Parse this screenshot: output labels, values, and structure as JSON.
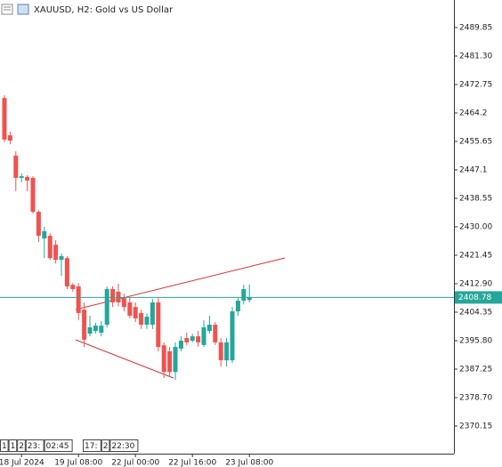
{
  "chart_data": {
    "type": "candlestick",
    "title": "XAUUSD, H2:  Gold vs US Dollar",
    "categories": [
      null,
      null,
      null,
      "18 Jul 2024",
      null,
      null,
      null,
      null,
      null,
      null,
      null,
      null,
      null,
      "19 Jul 08:00",
      null,
      null,
      null,
      null,
      null,
      null,
      null,
      null,
      null,
      "22 Jul 00:00",
      null,
      null,
      null,
      null,
      null,
      null,
      null,
      null,
      null,
      "22 Jul 16:00",
      null,
      null,
      null,
      null,
      null,
      null,
      null,
      null,
      null,
      "23 Jul 08:00"
    ],
    "open": [
      2468.7,
      2457.5,
      2451.4,
      2444.7,
      2445.0,
      2444.7,
      2434.5,
      2426.5,
      2427.3,
      2424.6,
      2420.1,
      2420.6,
      2412.6,
      2412.1,
      2405.1,
      2397.9,
      2398.7,
      2398.2,
      2400.6,
      2411.3,
      2410.5,
      2408.6,
      2407.3,
      2405.9,
      2404.1,
      2400.6,
      2400.6,
      2407.3,
      2394.4,
      2392.6,
      2386.4,
      2393.4,
      2396.6,
      2395.8,
      2397.1,
      2394.5,
      2398.7,
      2400.6,
      2395.3,
      2389.9,
      2389.9,
      2404.6,
      2407.8,
      2408.0
    ],
    "high": [
      2469.5,
      2458.6,
      2452.7,
      2446.0,
      2445.5,
      2445.2,
      2435.0,
      2430.0,
      2428.1,
      2426.0,
      2422.0,
      2421.2,
      2413.1,
      2413.1,
      2407.3,
      2403.3,
      2401.2,
      2401.7,
      2412.1,
      2412.1,
      2412.9,
      2409.9,
      2408.6,
      2407.3,
      2405.1,
      2404.0,
      2408.3,
      2408.6,
      2395.3,
      2393.9,
      2395.3,
      2397.1,
      2398.2,
      2397.9,
      2398.7,
      2401.9,
      2403.3,
      2401.4,
      2396.6,
      2396.6,
      2405.9,
      2408.6,
      2412.6,
      2412.6
    ],
    "low": [
      2455.4,
      2454.8,
      2440.7,
      2443.4,
      2440.7,
      2434.0,
      2425.4,
      2420.6,
      2420.1,
      2419.0,
      2415.3,
      2411.3,
      2410.5,
      2402.0,
      2393.9,
      2397.1,
      2397.9,
      2397.1,
      2399.8,
      2405.9,
      2406.1,
      2404.6,
      2402.5,
      2401.4,
      2399.3,
      2399.3,
      2399.3,
      2392.6,
      2384.6,
      2385.2,
      2384.0,
      2392.6,
      2394.4,
      2395.3,
      2394.0,
      2393.9,
      2397.9,
      2394.5,
      2388.0,
      2388.0,
      2389.1,
      2403.3,
      2406.7,
      2407.3
    ],
    "close": [
      2456.2,
      2455.9,
      2444.7,
      2445.2,
      2443.9,
      2434.5,
      2427.3,
      2428.7,
      2420.6,
      2420.1,
      2421.2,
      2412.1,
      2411.3,
      2404.1,
      2396.1,
      2399.8,
      2400.3,
      2400.3,
      2411.3,
      2407.3,
      2407.3,
      2405.9,
      2403.3,
      2402.5,
      2400.6,
      2403.0,
      2407.3,
      2393.9,
      2386.4,
      2386.4,
      2393.9,
      2395.8,
      2395.3,
      2397.1,
      2395.3,
      2399.8,
      2400.6,
      2395.3,
      2389.9,
      2395.3,
      2404.6,
      2407.8,
      2411.3,
      2408.78
    ],
    "up_color": "#26a69a",
    "down_color": "#ef5350",
    "ylim": [
      2361.86,
      2498.13
    ],
    "yticks": [
      2489.85,
      {
        "value": 2481.3,
        "label": "2481.30"
      },
      2472.75,
      2464.2,
      2455.65,
      2447.1,
      2438.55,
      {
        "value": 2430,
        "label": "2430.00"
      },
      2421.45,
      {
        "value": 2412.9,
        "label": "2412.90"
      },
      2404.35,
      {
        "value": 2395.8,
        "label": "2395.80"
      },
      2387.25,
      {
        "value": 2378.7,
        "label": "2378.70"
      },
      2370.15
    ],
    "last_price": 2408.78,
    "last_price_color": "#26a69a",
    "grid": false,
    "period_tags": [
      [
        "1",
        "1",
        "2",
        "23:",
        "02:45"
      ],
      [
        "17:",
        "2",
        "22:30"
      ]
    ]
  }
}
